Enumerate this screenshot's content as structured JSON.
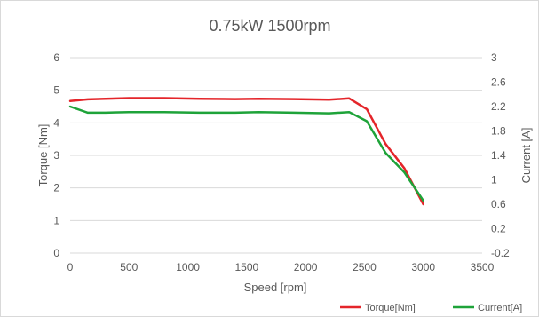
{
  "chart_data": {
    "type": "line",
    "title": "0.75kW 1500rpm",
    "xlabel": "Speed [rpm]",
    "ylabel": "Torque [Nm]",
    "y2label": "Current [A]",
    "xlim": [
      0,
      3500
    ],
    "ylim": [
      0,
      6
    ],
    "y2lim": [
      -0.2,
      3
    ],
    "x_ticks": [
      0,
      500,
      1000,
      1500,
      2000,
      2500,
      3000,
      3500
    ],
    "y_ticks": [
      0,
      1,
      2,
      3,
      4,
      5,
      6
    ],
    "y2_ticks": [
      -0.2,
      0.2,
      0.6,
      1,
      1.4,
      1.8,
      2.2,
      2.6,
      3
    ],
    "y2_tick_labels": [
      "-0.2",
      "0.2",
      "0.6",
      "1",
      "1.4",
      "1.8",
      "2.2",
      "2.6",
      "3"
    ],
    "grid": true,
    "legend": "bottom-right",
    "series": [
      {
        "name": "Torque[Nm]",
        "axis": "left",
        "color": "#e4252a",
        "x": [
          0,
          150,
          300,
          500,
          800,
          1100,
          1400,
          1600,
          1900,
          2200,
          2370,
          2520,
          2680,
          2840,
          3000
        ],
        "values": [
          4.67,
          4.72,
          4.74,
          4.76,
          4.76,
          4.74,
          4.73,
          4.74,
          4.73,
          4.71,
          4.75,
          4.42,
          3.35,
          2.6,
          1.5
        ]
      },
      {
        "name": "Current[A]",
        "axis": "right",
        "color": "#1ea339",
        "x": [
          0,
          150,
          300,
          500,
          800,
          1100,
          1400,
          1600,
          1900,
          2200,
          2370,
          2520,
          2680,
          2840,
          3000
        ],
        "values": [
          2.2,
          2.1,
          2.1,
          2.11,
          2.11,
          2.1,
          2.1,
          2.11,
          2.1,
          2.09,
          2.11,
          1.96,
          1.44,
          1.12,
          0.66
        ]
      }
    ]
  }
}
